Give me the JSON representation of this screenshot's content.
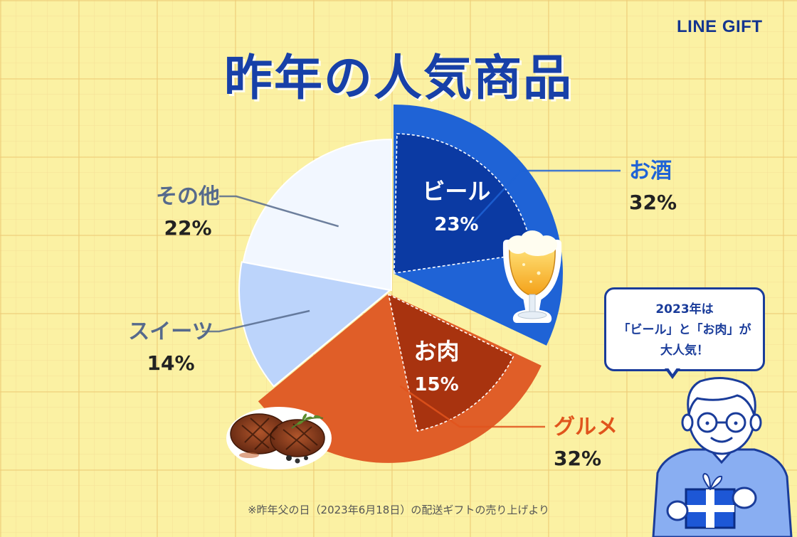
{
  "brand": "LINE GIFT",
  "colors": {
    "background": "#fbf1a3",
    "alcohol": "#1f63d6",
    "beer": "#0b3aa3",
    "gourmet": "#e05e28",
    "meat": "#a8330f",
    "sweets": "#bcd4fb",
    "other": "#f2f7ff",
    "label_blue": "#1f63d6",
    "label_orange": "#e0541c",
    "label_gray": "#566a8c",
    "navy": "#1a3c9a"
  },
  "callout": {
    "lines": [
      "2023年は",
      "「ビール」と「お肉」が",
      "大人気！"
    ]
  },
  "illustrations": [
    "beer-glass-icon",
    "steak-icon",
    "man-with-gift-icon"
  ],
  "footnote": "※昨年父の日（2023年6月18日）の配送ギフトの売り上げより",
  "chart_data": {
    "type": "pie",
    "title": "昨年の人気商品",
    "start_angle": "12 o'clock",
    "direction": "clockwise",
    "slices": [
      {
        "name": "お酒",
        "value": 32,
        "label": "32%",
        "color": "#1f63d6",
        "label_color": "#1f63d6"
      },
      {
        "name": "グルメ",
        "value": 32,
        "label": "32%",
        "color": "#e05e28",
        "label_color": "#e0541c"
      },
      {
        "name": "スイーツ",
        "value": 14,
        "label": "14%",
        "color": "#bcd4fb",
        "label_color": "#566a8c"
      },
      {
        "name": "その他",
        "value": 22,
        "label": "22%",
        "color": "#f2f7ff",
        "label_color": "#566a8c"
      }
    ],
    "sub_slices": [
      {
        "name": "ビール",
        "value": 23,
        "label": "23%",
        "parent": "お酒",
        "color": "#0b3aa3"
      },
      {
        "name": "お肉",
        "value": 15,
        "label": "15%",
        "parent": "グルメ",
        "color": "#a8330f"
      }
    ]
  }
}
